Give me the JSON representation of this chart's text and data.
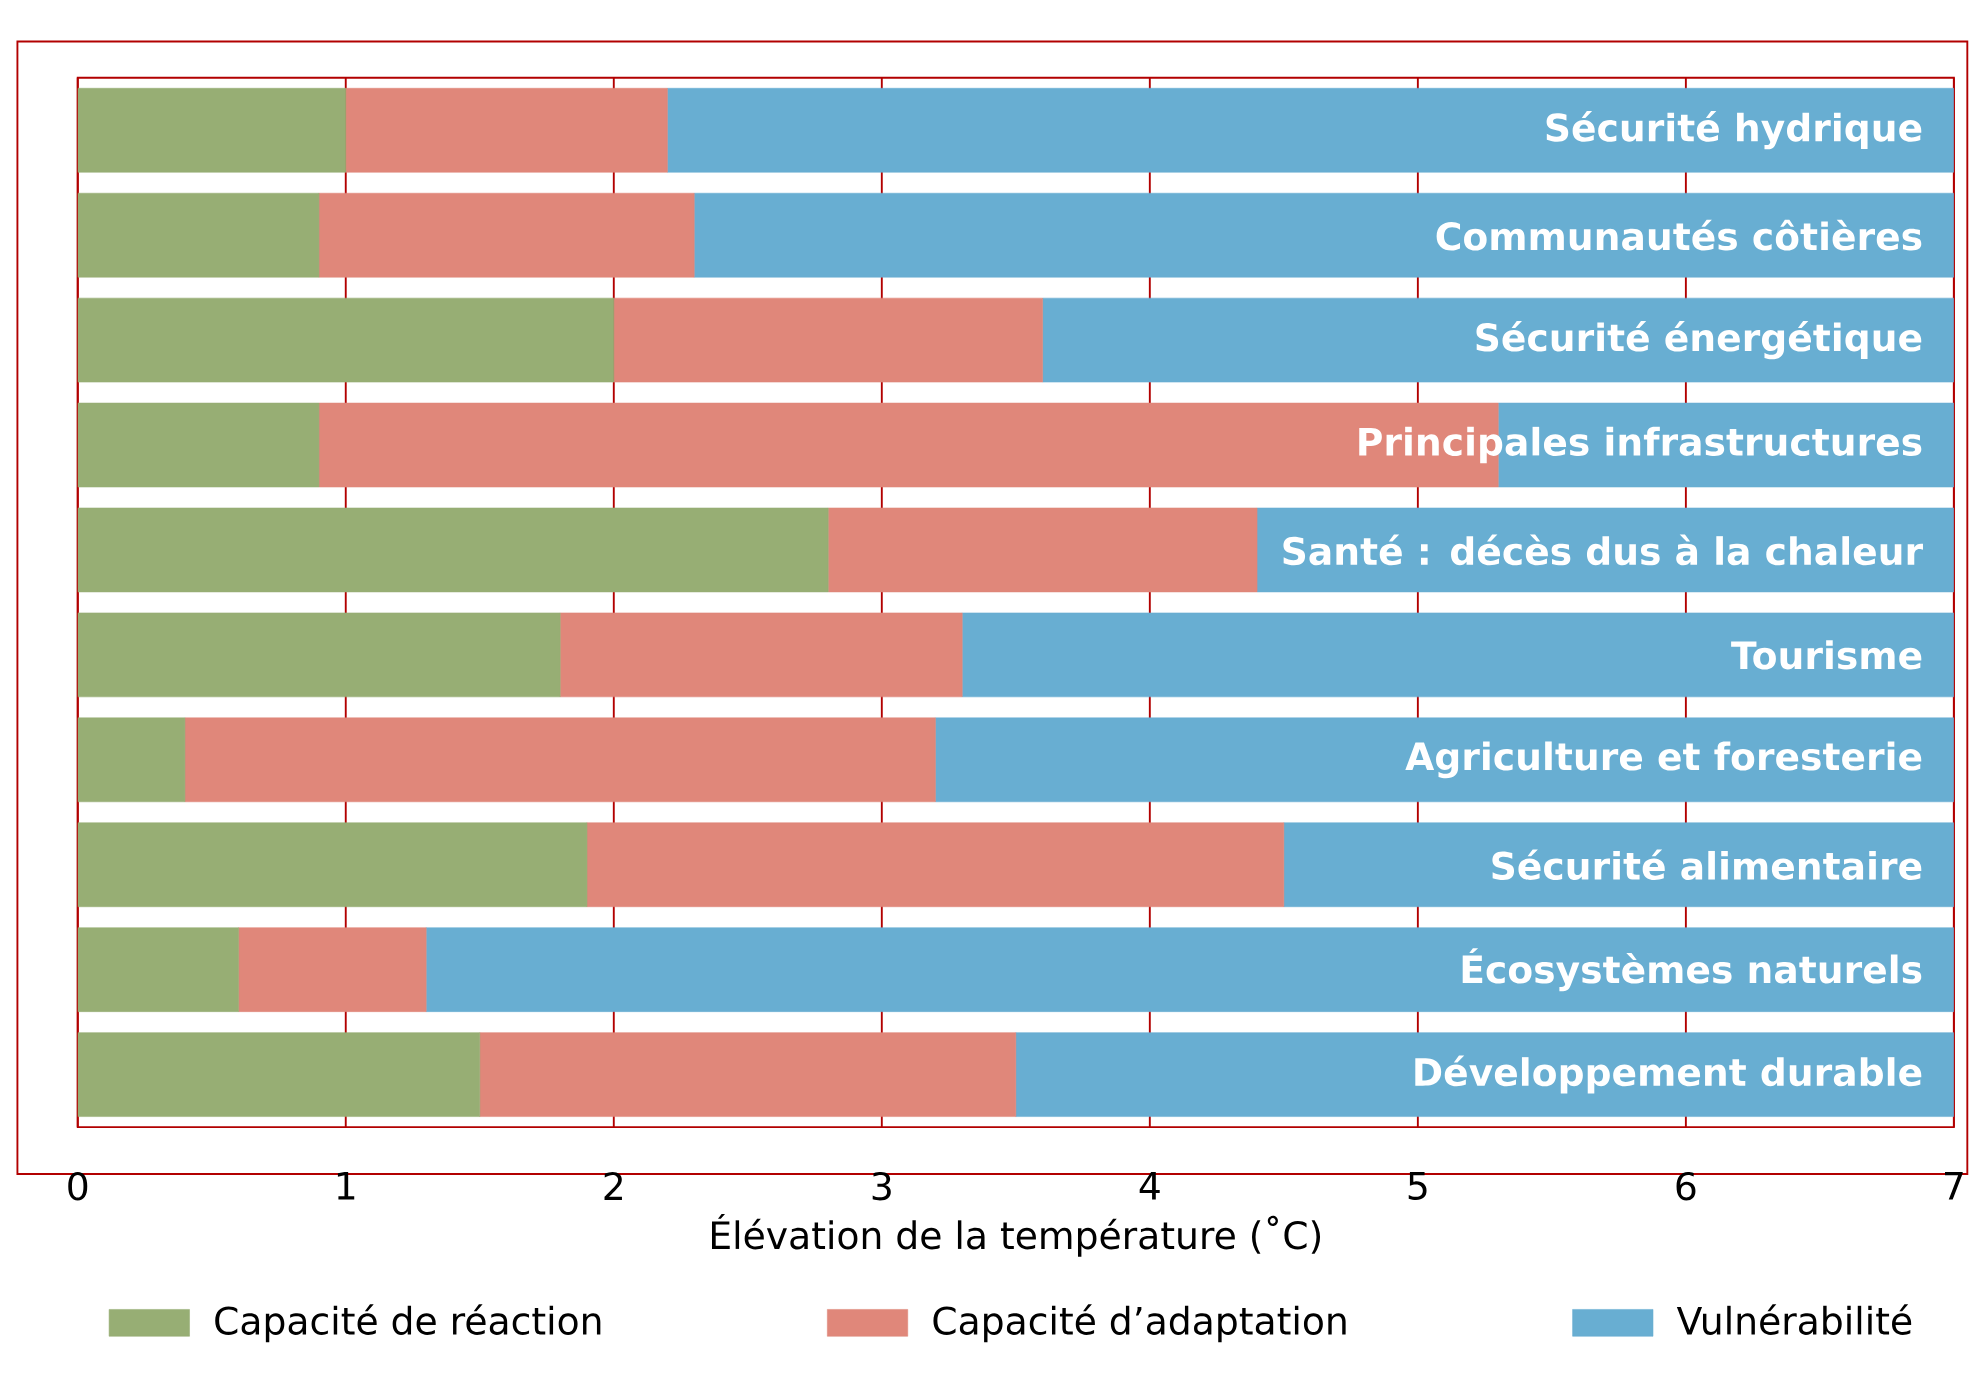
{
  "chart_data": {
    "type": "bar",
    "orientation": "horizontal",
    "stacked": true,
    "categories": [
      "Sécurité hydrique",
      "Communautés côtières",
      "Sécurité énergétique",
      "Principales infrastructures",
      "Santé : décès dus à la chaleur",
      "Tourisme",
      "Agriculture et foresterie",
      "Sécurité alimentaire",
      "Écosystèmes naturels",
      "Développement durable"
    ],
    "series": [
      {
        "name": "Capacité de réaction",
        "color": "#97ae74",
        "values": [
          1.0,
          0.9,
          2.0,
          0.9,
          2.8,
          1.8,
          0.4,
          1.9,
          0.6,
          1.5
        ]
      },
      {
        "name": "Capacité d’adaptation",
        "color": "#e0877a",
        "values": [
          1.2,
          1.4,
          1.6,
          4.4,
          1.6,
          1.5,
          2.8,
          2.6,
          0.7,
          2.0
        ]
      },
      {
        "name": "Vulnérabilité",
        "color": "#68aed2",
        "values": [
          4.8,
          4.7,
          3.4,
          1.7,
          2.6,
          3.7,
          3.8,
          2.5,
          5.7,
          3.5
        ]
      }
    ],
    "xlabel": "Élévation de la température (˚C)",
    "xlim": [
      0,
      7
    ],
    "xticks": [
      0,
      1,
      2,
      3,
      4,
      5,
      6,
      7
    ],
    "grid": "x",
    "legend": "bottom"
  }
}
